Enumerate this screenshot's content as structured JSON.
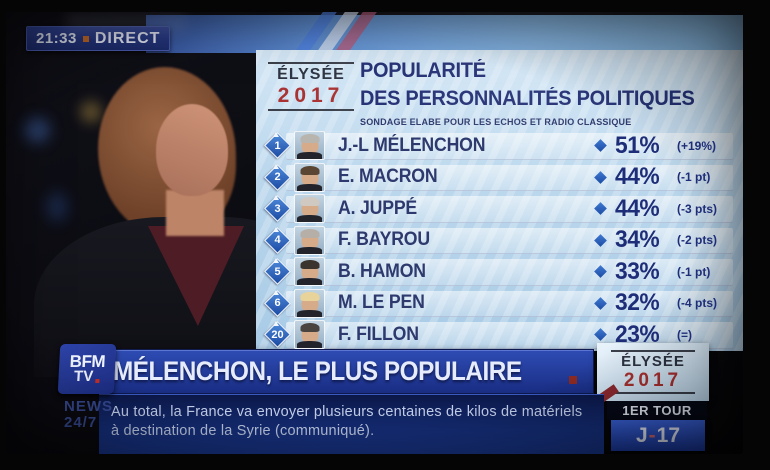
{
  "status_bar": {
    "time": "21:33",
    "live_label": "DIRECT"
  },
  "panel": {
    "logo": {
      "line1": "ÉLYSÉE",
      "line2": "2017"
    },
    "title_line1": "POPULARITÉ",
    "title_line2": "DES PERSONNALITÉS POLITIQUES",
    "subtitle": "SONDAGE ELABE POUR LES ECHOS ET RADIO CLASSIQUE",
    "rows": [
      {
        "rank": "1",
        "name": "J.-L MÉLENCHON",
        "value": "51%",
        "change": "(+19%)",
        "hair": "#b8b4ae"
      },
      {
        "rank": "2",
        "name": "E. MACRON",
        "value": "44%",
        "change": "(-1 pt)",
        "hair": "#5a4632"
      },
      {
        "rank": "3",
        "name": "A. JUPPÉ",
        "value": "44%",
        "change": "(-3 pts)",
        "hair": "#cfc9c2"
      },
      {
        "rank": "4",
        "name": "F. BAYROU",
        "value": "34%",
        "change": "(-2 pts)",
        "hair": "#b5afa8"
      },
      {
        "rank": "5",
        "name": "B. HAMON",
        "value": "33%",
        "change": "(-1 pt)",
        "hair": "#3a332e"
      },
      {
        "rank": "6",
        "name": "M. LE PEN",
        "value": "32%",
        "change": "(-4 pts)",
        "hair": "#e8d49a"
      },
      {
        "rank": "20",
        "name": "F. FILLON",
        "value": "23%",
        "change": "(=)",
        "hair": "#4a4440"
      }
    ]
  },
  "banner": {
    "headline": "MÉLENCHON, LE PLUS POPULAIRE"
  },
  "banner_logo": {
    "line1": "ÉLYSÉE",
    "line2": "2017"
  },
  "ticker": {
    "line1": "Au total, la France va envoyer plusieurs centaines de kilos de matériels",
    "line2": "à destination de la Syrie (communiqué)."
  },
  "channel": {
    "logo_line1": "BFM",
    "logo_line2": "TV",
    "tagline_line1": "NEWS",
    "tagline_line2": "24/7"
  },
  "countdown": {
    "label": "1ER TOUR",
    "value_prefix": "J",
    "value_sep": "-",
    "value_number": "17"
  },
  "colors": {
    "accent_navy": "#1d2d78",
    "panel_blue": "#b9d6ec",
    "banner_blue": "#22389c",
    "brand_red": "#a83030",
    "live_separator_orange": "#c86a28",
    "period_square_red": "#8c2a22"
  }
}
